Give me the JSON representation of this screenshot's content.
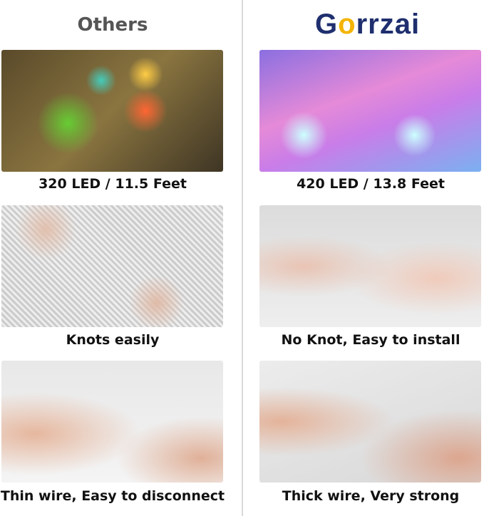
{
  "header": {
    "others": "Others",
    "brand_logo": "Gorrzai"
  },
  "rows": [
    {
      "left_caption": "320 LED / 11.5 Feet",
      "right_caption": "420 LED / 13.8 Feet"
    },
    {
      "left_caption": "Knots easily",
      "right_caption": "No Knot, Easy to install"
    },
    {
      "left_caption": "Thin wire, Easy to disconnect",
      "right_caption": "Thick wire, Very strong"
    }
  ],
  "colors": {
    "brand_blue": "#1f2f6e",
    "brand_yellow": "#f4b400"
  }
}
